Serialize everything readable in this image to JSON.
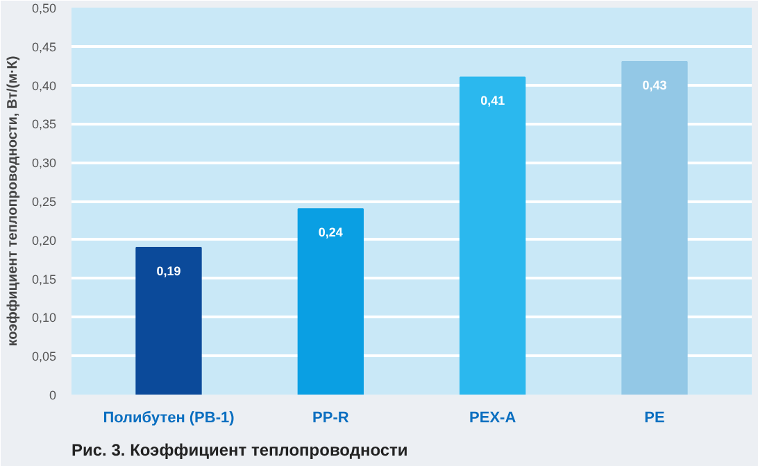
{
  "chart_data": {
    "type": "bar",
    "categories": [
      "Полибутен (PB-1)",
      "PP-R",
      "PEX-A",
      "PE"
    ],
    "values": [
      0.19,
      0.24,
      0.41,
      0.43
    ],
    "colors": [
      "#0b4a9a",
      "#0a9fe3",
      "#2bb8ee",
      "#93c8e6"
    ],
    "value_labels": [
      "0,19",
      "0,24",
      "0,41",
      "0,43"
    ],
    "ylabel": "коэффициент теплопроводности, Вт/(м·К)",
    "ylim": [
      0,
      0.5
    ],
    "yticks": [
      0,
      {
        "value": 0.05,
        "label": "0,05"
      },
      {
        "value": 0.1,
        "label": "0,10"
      },
      {
        "value": 0.15,
        "label": "0,15"
      },
      {
        "value": 0.2,
        "label": "0,20"
      },
      {
        "value": 0.25,
        "label": "0,25"
      },
      {
        "value": 0.3,
        "label": "0,30"
      },
      {
        "value": 0.35,
        "label": "0,35"
      },
      {
        "value": 0.4,
        "label": "0,40"
      },
      {
        "value": 0.45,
        "label": "0,45"
      },
      {
        "value": 0.5,
        "label": "0,50"
      }
    ],
    "grid": "y",
    "annotations": [
      "Рис. 3. Коэффициент теплопроводности"
    ]
  }
}
